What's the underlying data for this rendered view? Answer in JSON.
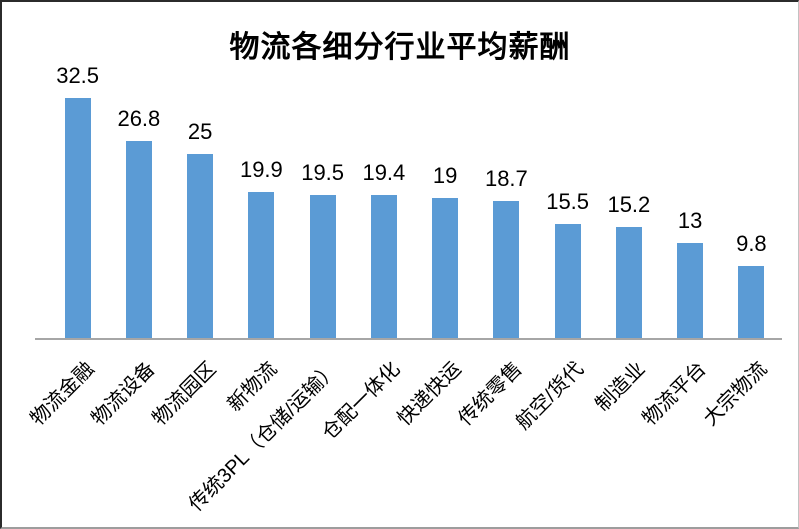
{
  "chart_data": {
    "type": "bar",
    "title": "物流各细分行业平均薪酬",
    "categories": [
      "物流金融",
      "物流设备",
      "物流园区",
      "新物流",
      "传统3PL（仓储/运输）",
      "仓配一体化",
      "快递快运",
      "传统零售",
      "航空/货代",
      "制造业",
      "物流平台",
      "大宗物流"
    ],
    "values": [
      32.5,
      26.8,
      25,
      19.9,
      19.5,
      19.4,
      19,
      18.7,
      15.5,
      15.2,
      13,
      9.8
    ],
    "value_labels": [
      "32.5",
      "26.8",
      "25",
      "19.9",
      "19.5",
      "19.4",
      "19",
      "18.7",
      "15.5",
      "15.2",
      "13",
      "9.8"
    ],
    "xlabel": "",
    "ylabel": "",
    "ylim": [
      0,
      35
    ],
    "grid": false,
    "legend": false,
    "bar_color": "#5B9BD5",
    "axis_color": "#A6A6A6",
    "text_color": "#000000",
    "value_labels_shown": true,
    "category_label_rotation_deg": 45
  }
}
